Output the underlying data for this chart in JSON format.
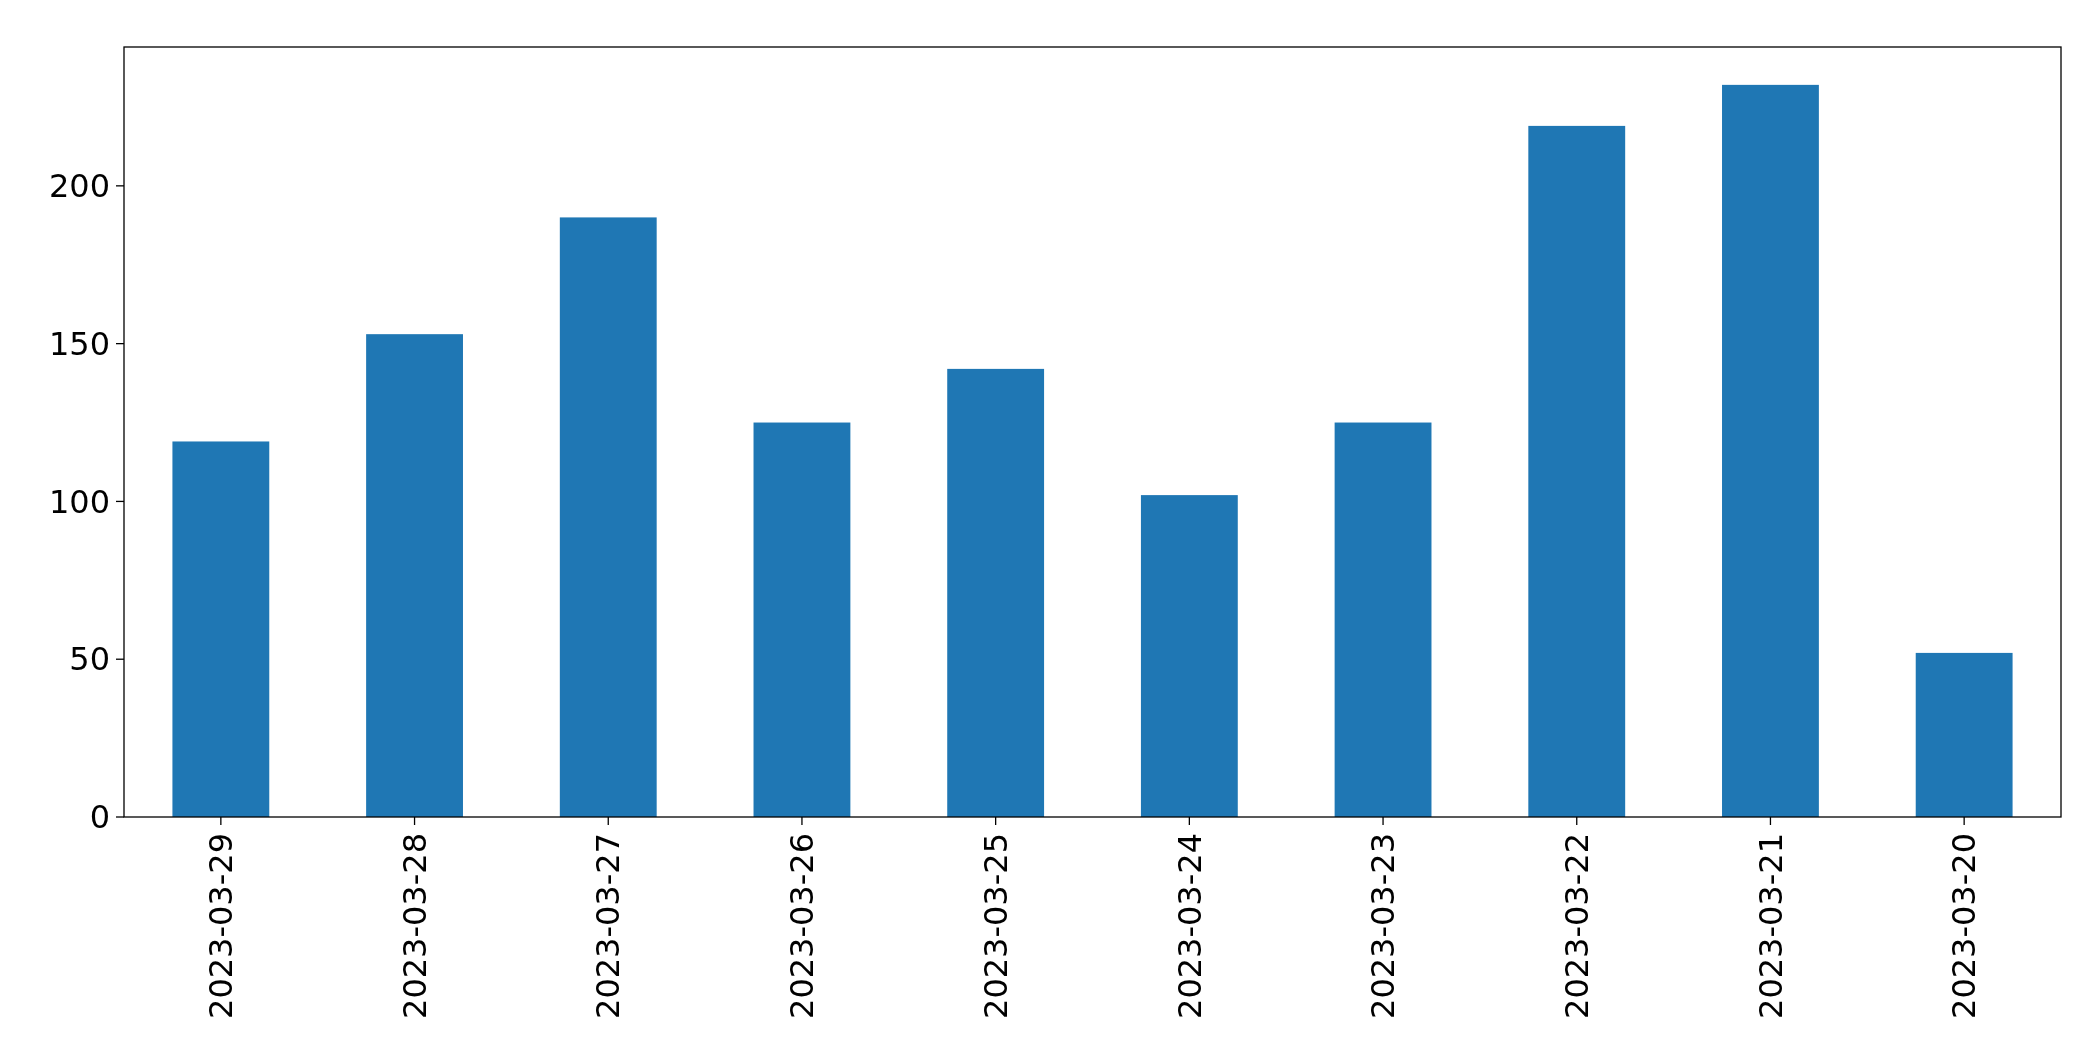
{
  "chart_data": {
    "type": "bar",
    "categories": [
      "2023-03-29",
      "2023-03-28",
      "2023-03-27",
      "2023-03-26",
      "2023-03-25",
      "2023-03-24",
      "2023-03-23",
      "2023-03-22",
      "2023-03-21",
      "2023-03-20"
    ],
    "values": [
      119,
      153,
      190,
      125,
      142,
      102,
      125,
      219,
      232,
      52
    ],
    "color": "#1f77b4",
    "ylim": [
      0,
      244
    ],
    "yticks": [
      0,
      50,
      100,
      150,
      200
    ],
    "grid": false
  }
}
